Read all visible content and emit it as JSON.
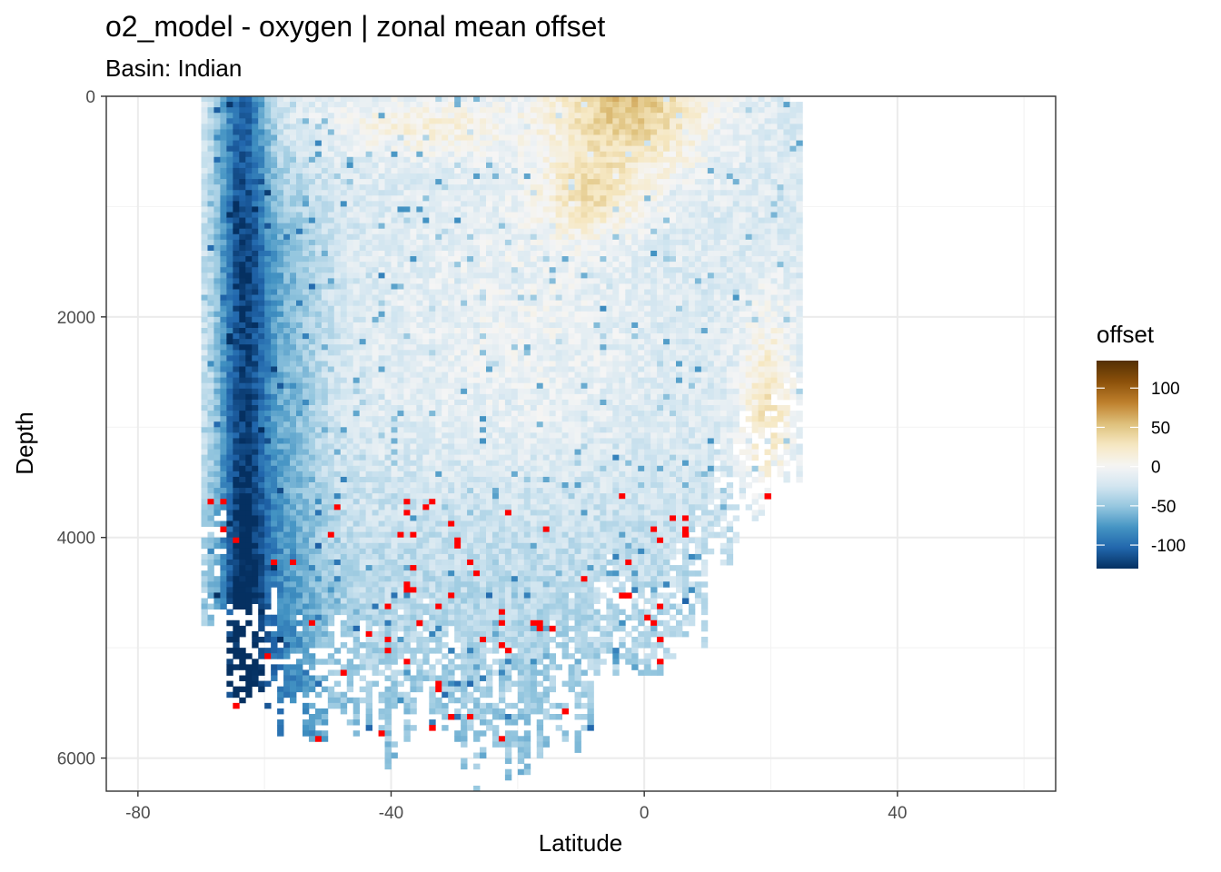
{
  "chart_data": {
    "type": "heatmap",
    "title": "o2_model - oxygen  | zonal mean offset",
    "subtitle": "Basin: Indian",
    "xlabel": "Latitude",
    "ylabel": "Depth",
    "xlim": [
      -85,
      65
    ],
    "ylim": [
      6300,
      0
    ],
    "x_ticks": [
      -80,
      -40,
      0,
      40
    ],
    "x_tick_labels": [
      "-80",
      "-40",
      "0",
      "40"
    ],
    "y_ticks": [
      0,
      2000,
      4000,
      6000
    ],
    "y_tick_labels": [
      "0",
      "2000",
      "4000",
      "6000"
    ],
    "grid": true,
    "legend": {
      "title": "offset",
      "placement": "right",
      "range": [
        -130,
        135
      ],
      "ticks": [
        100,
        50,
        0,
        -50,
        -100
      ],
      "tick_labels": [
        "100",
        "50",
        "0",
        "-50",
        "-100"
      ],
      "colors": [
        "#053061",
        "#2166ac",
        "#4393c3",
        "#92c5de",
        "#d1e5f0",
        "#f5f5f5",
        "#f6e8c3",
        "#dfc27d",
        "#bf812d",
        "#8c510a",
        "#543005"
      ]
    },
    "out_of_range_color": "#ff0000",
    "latitude_range": [
      -70,
      25
    ],
    "value_range": [
      -130,
      135
    ],
    "cells_description": "Zonal mean oxygen offset by latitude (x) and depth (y); positive offsets (brown) in the upper 1000 m between -25 and 25 latitude, strongly negative offsets (dark blue) near -65 to -60 latitude and in deep water, red cells are out of range"
  }
}
